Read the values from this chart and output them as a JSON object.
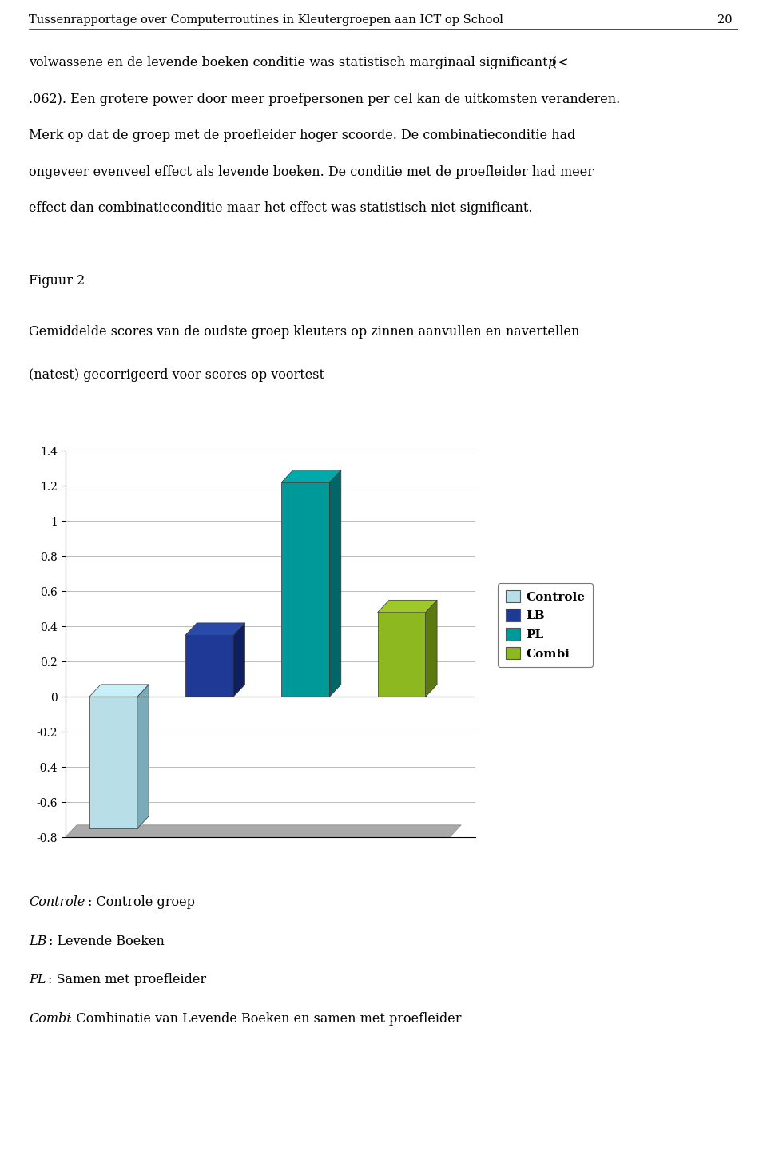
{
  "header_text": "Tussenrapportage over Computerroutines in Kleutergroepen aan ICT op School",
  "page_number": "20",
  "fig_label": "Figuur 2",
  "fig_caption_line1": "Gemiddelde scores van de oudste groep kleuters op zinnen aanvullen en navertellen",
  "fig_caption_line2": "(natest) gecorrigeerd voor scores op voortest",
  "bar_values": [
    -0.75,
    0.35,
    1.22,
    0.48
  ],
  "bar_labels": [
    "Controle",
    "LB",
    "PL",
    "Combi"
  ],
  "bar_colors": [
    "#B8DEE8",
    "#1E3A96",
    "#00999A",
    "#8DB820"
  ],
  "bar_right_colors": [
    "#7AABB8",
    "#0D1F60",
    "#006668",
    "#5A7A10"
  ],
  "bar_top_colors": [
    "#C8EEF8",
    "#2A4AAA",
    "#00AAAB",
    "#9EC828"
  ],
  "ylim": [
    -0.8,
    1.4
  ],
  "yticks": [
    -0.8,
    -0.6,
    -0.4,
    -0.2,
    0,
    0.2,
    0.4,
    0.6,
    0.8,
    1.0,
    1.2,
    1.4
  ],
  "ytick_labels": [
    "-0.8",
    "-0.6",
    "-0.4",
    "-0.2",
    "0",
    "0.2",
    "0.4",
    "0.6",
    "0.8",
    "1",
    "1.2",
    "1.4"
  ],
  "legend_labels": [
    "Controle",
    "LB",
    "PL",
    "Combi"
  ],
  "legend_colors": [
    "#B8DEE8",
    "#1E3A96",
    "#00999A",
    "#8DB820"
  ],
  "background_color": "#ffffff",
  "chart_bg_color": "#ffffff",
  "grid_color": "#bbbbbb",
  "text_color": "#000000",
  "font_size_header": 10.5,
  "font_size_body": 11.5,
  "font_size_fig": 11.5,
  "font_size_axis": 10,
  "font_size_legend": 11,
  "font_size_footer": 11.5
}
